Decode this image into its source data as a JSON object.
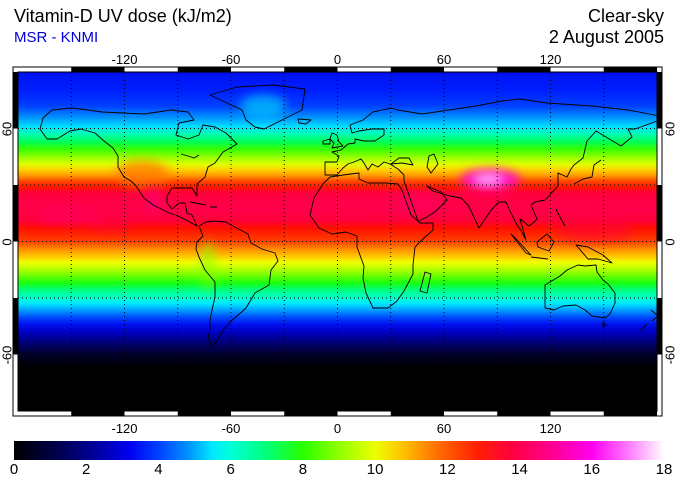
{
  "header": {
    "title": "Vitamin-D UV dose (kJ/m2)",
    "source": "MSR - KNMI",
    "source_color": "#0000d8",
    "condition": "Clear-sky",
    "date": "2 August 2005"
  },
  "map": {
    "projection": "equirectangular",
    "lon_range": [
      -180,
      180
    ],
    "lat_range": [
      -90,
      90
    ],
    "grid_interval_deg": 30,
    "lon_tick_values": [
      -120,
      -60,
      0,
      60,
      120
    ],
    "lon_tick_labels": [
      "-120",
      "-60",
      "0",
      "60",
      "120"
    ],
    "lat_tick_values": [
      60,
      0,
      -60
    ],
    "lat_tick_labels": [
      "60",
      "0",
      "-60"
    ]
  },
  "colorbar": {
    "min": 0,
    "max": 18,
    "units": "kJ/m2",
    "tick_values": [
      0,
      2,
      4,
      6,
      8,
      10,
      12,
      14,
      16,
      18
    ],
    "tick_labels": [
      "0",
      "2",
      "4",
      "6",
      "8",
      "10",
      "12",
      "14",
      "16",
      "18"
    ],
    "gradient_stops": [
      {
        "value": 0,
        "color": "#000000"
      },
      {
        "value": 1.5,
        "color": "#000060"
      },
      {
        "value": 2.5,
        "color": "#0000B0"
      },
      {
        "value": 3.2,
        "color": "#0000F0"
      },
      {
        "value": 4,
        "color": "#0040FF"
      },
      {
        "value": 4.8,
        "color": "#0090FF"
      },
      {
        "value": 5.5,
        "color": "#00E8FF"
      },
      {
        "value": 6,
        "color": "#00FFD8"
      },
      {
        "value": 7,
        "color": "#00FF78"
      },
      {
        "value": 8,
        "color": "#28FF00"
      },
      {
        "value": 9,
        "color": "#90FF00"
      },
      {
        "value": 10,
        "color": "#ECFF00"
      },
      {
        "value": 10.8,
        "color": "#FFC000"
      },
      {
        "value": 11.8,
        "color": "#FF6800"
      },
      {
        "value": 12.8,
        "color": "#FF2000"
      },
      {
        "value": 13.8,
        "color": "#FF0040"
      },
      {
        "value": 15,
        "color": "#FF0098"
      },
      {
        "value": 16,
        "color": "#FF00F0"
      },
      {
        "value": 17,
        "color": "#FF78FF"
      },
      {
        "value": 18,
        "color": "#FFFFFF"
      }
    ]
  },
  "chart_data": {
    "type": "heatmap",
    "title": "Vitamin-D UV dose (kJ/m2)",
    "source": "MSR - KNMI",
    "condition": "Clear-sky",
    "date": "2 August 2005",
    "units": "kJ/m2",
    "value_range": [
      0,
      18
    ],
    "projection": "equirectangular",
    "lon_range": [
      -180,
      180
    ],
    "lat_range": [
      -90,
      90
    ],
    "zonal_mean_profile": [
      {
        "lat": 90,
        "value": 3.3,
        "color": "#0010F0"
      },
      {
        "lat": 80,
        "value": 3.5,
        "color": "#0020FF"
      },
      {
        "lat": 72,
        "value": 4.0,
        "color": "#0040FF"
      },
      {
        "lat": 66,
        "value": 4.8,
        "color": "#0090FF"
      },
      {
        "lat": 61,
        "value": 5.6,
        "color": "#00E0FF"
      },
      {
        "lat": 57,
        "value": 6.4,
        "color": "#00FFB0"
      },
      {
        "lat": 53,
        "value": 7.4,
        "color": "#00FF58"
      },
      {
        "lat": 49,
        "value": 8.2,
        "color": "#38FF00"
      },
      {
        "lat": 45,
        "value": 9.0,
        "color": "#90FF00"
      },
      {
        "lat": 41,
        "value": 9.9,
        "color": "#E0FF00"
      },
      {
        "lat": 38,
        "value": 10.7,
        "color": "#FFD000"
      },
      {
        "lat": 35,
        "value": 11.5,
        "color": "#FF9800"
      },
      {
        "lat": 32,
        "value": 12.4,
        "color": "#FF4800"
      },
      {
        "lat": 29,
        "value": 13.0,
        "color": "#FF1800"
      },
      {
        "lat": 26,
        "value": 13.5,
        "color": "#FF0038"
      },
      {
        "lat": 22,
        "value": 13.8,
        "color": "#FF0044"
      },
      {
        "lat": 16,
        "value": 13.9,
        "color": "#FF0048"
      },
      {
        "lat": 11,
        "value": 13.6,
        "color": "#FF0038"
      },
      {
        "lat": 7,
        "value": 13.1,
        "color": "#FF1000"
      },
      {
        "lat": 3,
        "value": 12.7,
        "color": "#FF2C00"
      },
      {
        "lat": 0,
        "value": 12.3,
        "color": "#FF4000"
      },
      {
        "lat": -4,
        "value": 11.4,
        "color": "#FF8C00"
      },
      {
        "lat": -8,
        "value": 10.5,
        "color": "#FFC800"
      },
      {
        "lat": -11,
        "value": 9.9,
        "color": "#F0FF00"
      },
      {
        "lat": -14,
        "value": 9.4,
        "color": "#C0FF00"
      },
      {
        "lat": -18,
        "value": 8.6,
        "color": "#70FF00"
      },
      {
        "lat": -22,
        "value": 7.7,
        "color": "#18FF10"
      },
      {
        "lat": -26,
        "value": 6.9,
        "color": "#00FF84"
      },
      {
        "lat": -30,
        "value": 6.1,
        "color": "#00FFCC"
      },
      {
        "lat": -33,
        "value": 5.5,
        "color": "#00E8FF"
      },
      {
        "lat": -36,
        "value": 4.9,
        "color": "#00A8FF"
      },
      {
        "lat": -40,
        "value": 4.1,
        "color": "#0050FF"
      },
      {
        "lat": -44,
        "value": 3.3,
        "color": "#0010F0"
      },
      {
        "lat": -48,
        "value": 2.6,
        "color": "#0000C4"
      },
      {
        "lat": -52,
        "value": 1.9,
        "color": "#00008C"
      },
      {
        "lat": -56,
        "value": 1.2,
        "color": "#000058"
      },
      {
        "lat": -60,
        "value": 0.6,
        "color": "#00002C"
      },
      {
        "lat": -64,
        "value": 0.2,
        "color": "#000012"
      },
      {
        "lat": -67,
        "value": 0.0,
        "color": "#000000"
      },
      {
        "lat": -90,
        "value": 0.0,
        "color": "#000000"
      }
    ],
    "features": [
      {
        "name": "Tibetan Plateau maximum",
        "lon": 86,
        "lat": 33,
        "lon_span": 34,
        "lat_span": 11,
        "value": 16.5,
        "color": "#FF00D8",
        "opacity": 0.9
      },
      {
        "name": "Tibetan Plateau core",
        "lon": 85,
        "lat": 33,
        "lon_span": 18,
        "lat_span": 6,
        "value": 17.5,
        "color": "#FFB4FF",
        "opacity": 0.95
      },
      {
        "name": "US Southwest / Rockies high",
        "lon": -110,
        "lat": 36,
        "lon_span": 30,
        "lat_span": 14,
        "value": 12.5,
        "color": "#FF7800",
        "opacity": 0.75
      },
      {
        "name": "Sierra Madre Mexico high",
        "lon": -104,
        "lat": 22,
        "lon_span": 8,
        "lat_span": 14,
        "value": 14.5,
        "color": "#FF0078",
        "opacity": 0.7
      },
      {
        "name": "Sahara high band",
        "lon": 8,
        "lat": 20,
        "lon_span": 90,
        "lat_span": 12,
        "value": 14.0,
        "color": "#FF0050",
        "opacity": 0.45
      },
      {
        "name": "Arabian Peninsula high",
        "lon": 46,
        "lat": 21,
        "lon_span": 26,
        "lat_span": 12,
        "value": 14.3,
        "color": "#FF0060",
        "opacity": 0.6
      },
      {
        "name": "Andes ridge",
        "lon": -73,
        "lat": -13,
        "lon_span": 8,
        "lat_span": 26,
        "value": 8.8,
        "color": "#86FF00",
        "opacity": 0.6
      },
      {
        "name": "Greenland ice sheet",
        "lon": -42,
        "lat": 72,
        "lon_span": 26,
        "lat_span": 12,
        "value": 5.4,
        "color": "#00DCFA",
        "opacity": 0.65
      },
      {
        "name": "East Pacific ITCZ patch",
        "lon": -152,
        "lat": 13,
        "lon_span": 36,
        "lat_span": 9,
        "value": 14.2,
        "color": "#FF0068",
        "opacity": 0.55
      },
      {
        "name": "Central Pacific patch",
        "lon": -128,
        "lat": 9,
        "lon_span": 26,
        "lat_span": 8,
        "value": 13.9,
        "color": "#FF0048",
        "opacity": 0.45
      },
      {
        "name": "West Pacific warm pool patch",
        "lon": 145,
        "lat": 6,
        "lon_span": 44,
        "lat_span": 12,
        "value": 13.8,
        "color": "#FF0040",
        "opacity": 0.5
      }
    ]
  }
}
